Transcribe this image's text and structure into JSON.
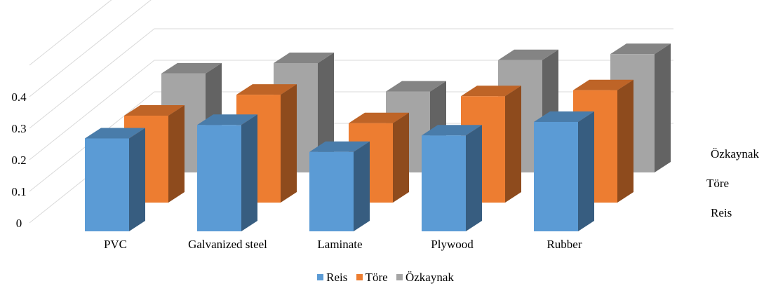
{
  "chart_data": {
    "type": "bar",
    "subtype": "3d-column",
    "title": "",
    "categories": [
      "PVC",
      "Galvanized steel",
      "Laminate",
      "Plywood",
      "Rubber"
    ],
    "series": [
      {
        "name": "Reis",
        "values": [
          0.31,
          0.355,
          0.265,
          0.32,
          0.365
        ],
        "color": "#5B9BD5"
      },
      {
        "name": "Töre",
        "values": [
          0.29,
          0.36,
          0.265,
          0.355,
          0.375
        ],
        "color": "#ED7D31"
      },
      {
        "name": "Özkaynak",
        "values": [
          0.33,
          0.365,
          0.27,
          0.375,
          0.395
        ],
        "color": "#A5A5A5"
      }
    ],
    "y_ticks": [
      "0",
      "0.1",
      "0.2",
      "0.3",
      "0.4"
    ],
    "ylim": [
      0,
      0.5
    ],
    "grid": true,
    "legend": "bottom"
  }
}
